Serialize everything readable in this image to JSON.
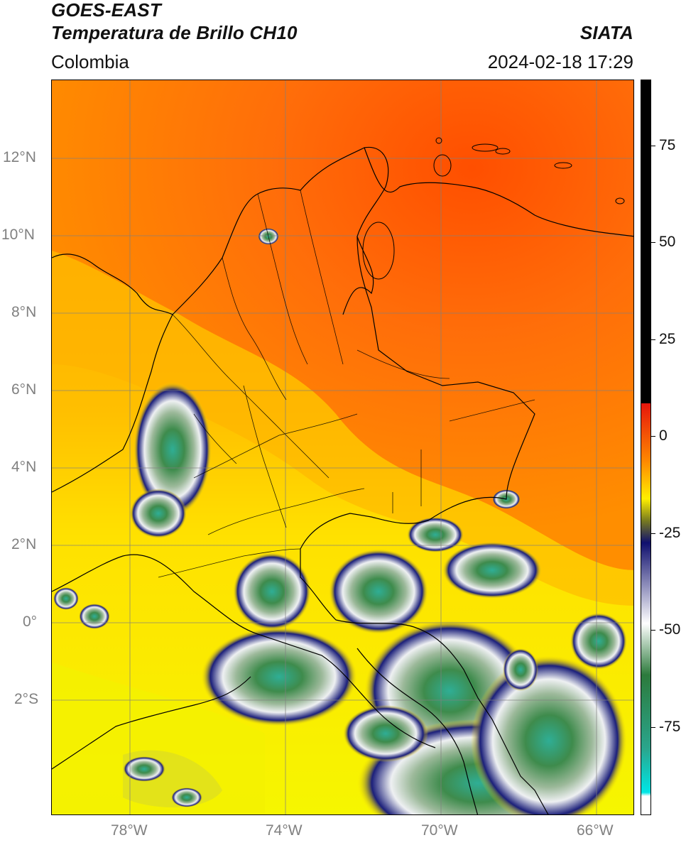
{
  "header": {
    "satellite": "GOES-EAST",
    "product": "Temperatura de Brillo CH10",
    "org": "SIATA",
    "region": "Colombia",
    "datetime": "2024-02-18 17:29"
  },
  "axes": {
    "lat_labels": [
      "12°N",
      "10°N",
      "8°N",
      "6°N",
      "4°N",
      "2°N",
      "0°",
      "2°S"
    ],
    "lon_labels": [
      "78°W",
      "74°W",
      "70°W",
      "66°W"
    ]
  },
  "colorbar": {
    "tick_labels": [
      "75",
      "50",
      "25",
      "0",
      "-25",
      "-50",
      "-75"
    ],
    "colors": {
      "black": "#000000",
      "red": "#e6150c",
      "orange": "#ff8a00",
      "yellow": "#ffef00",
      "olive": "#777a20",
      "navy": "#10106e",
      "white": "#ffffff",
      "green": "#2c7a3c",
      "teal": "#2aa58c",
      "cyan": "#00e6e6"
    }
  },
  "map_colors": {
    "warm_sea": "#ff6a0a",
    "hot_core": "#ff4a00",
    "land_orange": "#ffa100",
    "yellow": "#ffe100",
    "light_yellow": "#f3f300",
    "cloud_navy": "#1b1f7a",
    "cloud_white": "#e8ecef",
    "cloud_green": "#3e8b4c",
    "cloud_teal": "#2fae95",
    "border": "#000000",
    "grid": "#7f7f7f"
  }
}
